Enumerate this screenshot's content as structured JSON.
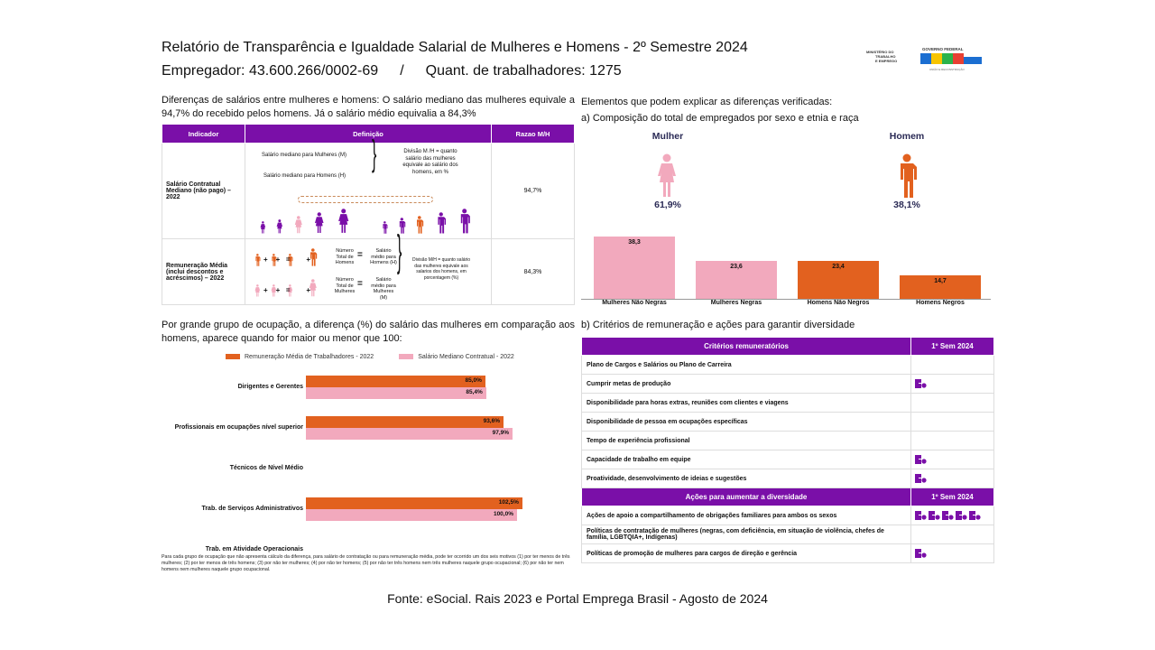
{
  "header": {
    "title": "Relatório de Transparência e Igualdade Salarial de Mulheres e Homens - 2º Semestre 2024",
    "employer": "Empregador: 43.600.266/0002-69",
    "separator": "/",
    "workers": "Quant. de trabalhadores: 1275",
    "logo_text": [
      "MINISTÉRIO DO TRABALHO E EMPREGO",
      "GOVERNO FEDERAL",
      "BRASIL",
      "UNIÃO E RECONSTRUÇÃO"
    ]
  },
  "left": {
    "lead": "Diferenças de salários entre mulheres e homens: O salário mediano das mulheres equivale a 94,7% do recebido pelos homens. Já o salário médio equivalia a 84,3%",
    "table": {
      "headers": [
        "Indicador",
        "Definição",
        "Razao M/H"
      ],
      "rows": [
        {
          "indicator": "Salário Contratual Mediano (não pago) – 2022",
          "def_m": "Salário mediano para Mulheres (M)",
          "def_h": "Salário mediano para Homens (H)",
          "def_div": "Divisão M /H = quanto salário das mulheres equivale ao salário dos homens, em %",
          "ratio": "94,7%"
        },
        {
          "indicator": "Remuneração Média (inclui descontos e acréscimos) – 2022",
          "num_h": "Número Total de Homens",
          "sal_h": "Salário médio para Homens (H)",
          "num_m": "Número Total de Mulheres",
          "sal_m": "Salário médio para Mulheres (M)",
          "def_div": "Divisão M/H = quanto salário das mulheres equivale aos salarios dos homens, em porcentagem (%)",
          "ratio": "84,3%"
        }
      ]
    },
    "occupation_lead": "Por grande grupo de ocupação, a diferença (%) do salário das mulheres em comparação aos homens, aparece quando for maior ou menor que 100:",
    "note": "Para cada grupo de ocupação que não apresenta cálculo da diferença, para salário de contratação ou para remuneração média, pode ter ocorrido um dos seis motivos (1) por ter menos de três mulheres; (2) por ter menos de três homens; (3) por não ter mulheres; (4) por não ter homens; (5) por não ter três homens nem três mulheres naquele grupo ocupacional; (6) por não ter nem homens nem mulheres naquele grupo ocupacional."
  },
  "right": {
    "lead": "Elementos que podem explicar as diferenças verificadas:",
    "sub_a": "a) Composição do total de empregados por sexo e etnia e raça",
    "woman": {
      "label": "Mulher",
      "pct": "61,9%"
    },
    "man": {
      "label": "Homem",
      "pct": "38,1%"
    },
    "sub_b": "b) Critérios de remuneração e ações para garantir diversidade",
    "criteria": {
      "headers": [
        "Critérios remuneratórios",
        "1º Sem 2024"
      ],
      "rows": [
        {
          "label": "Plano de Cargos e Salários ou Plano de Carreira",
          "icons": 0
        },
        {
          "label": "Cumprir metas de produção",
          "icons": 1
        },
        {
          "label": "Disponibilidade para horas extras, reuniões com clientes e viagens",
          "icons": 0
        },
        {
          "label": "Disponibilidade de pessoa em ocupações específicas",
          "icons": 0
        },
        {
          "label": "Tempo de experiência profissional",
          "icons": 0
        },
        {
          "label": "Capacidade de trabalho em equipe",
          "icons": 1
        },
        {
          "label": "Proatividade, desenvolvimento de ideias e sugestões",
          "icons": 1
        }
      ]
    },
    "actions": {
      "headers": [
        "Ações para aumentar a diversidade",
        "1º Sem 2024"
      ],
      "rows": [
        {
          "label": "Ações de apoio a compartilhamento de obrigações familiares para ambos os sexos",
          "icons": 5
        },
        {
          "label": "Políticas de contratação de mulheres (negras, com deficiência, em situação de violência, chefes de família, LGBTQIA+, Indígenas)",
          "icons": 0
        },
        {
          "label": "Políticas de promoção de mulheres para cargos de direção e gerência",
          "icons": 1
        }
      ]
    }
  },
  "footer": {
    "source": "Fonte: eSocial. Rais 2023 e Portal Emprega Brasil - Agosto de 2024"
  },
  "colors": {
    "purple": "#7a0fa8",
    "orange": "#e2611f",
    "pink": "#f2a9bd",
    "navy": "#2a2a55"
  },
  "chart_data": [
    {
      "type": "bar",
      "orientation": "horizontal",
      "categories": [
        "Dirigentes e Gerentes",
        "Profissionais em ocupações nível superior",
        "Técnicos de Nível Médio",
        "Trab. de Serviços Administrativos",
        "Trab. em Atividade Operacionais"
      ],
      "series": [
        {
          "name": "Remuneração Média de Trabalhadores - 2022",
          "values": [
            85.0,
            93.6,
            null,
            102.5,
            null
          ],
          "labels": [
            "85,0%",
            "93,6%",
            "",
            "102,5%",
            ""
          ],
          "color": "#e2611f"
        },
        {
          "name": "Salário Mediano Contratual - 2022",
          "values": [
            85.4,
            97.9,
            null,
            100.0,
            null
          ],
          "labels": [
            "85,4%",
            "97,9%",
            "",
            "100,0%",
            ""
          ],
          "color": "#f2a9bd"
        }
      ],
      "legend": "top"
    },
    {
      "type": "bar",
      "categories": [
        "Mulheres Não Negras",
        "Mulheres Negras",
        "Homens Não Negros",
        "Homens Negros"
      ],
      "values": [
        38.3,
        23.6,
        23.4,
        14.7
      ],
      "labels": [
        "38,3",
        "23,6",
        "23,4",
        "14,7"
      ],
      "colors": [
        "#f2a9bd",
        "#f2a9bd",
        "#e2611f",
        "#e2611f"
      ]
    }
  ]
}
